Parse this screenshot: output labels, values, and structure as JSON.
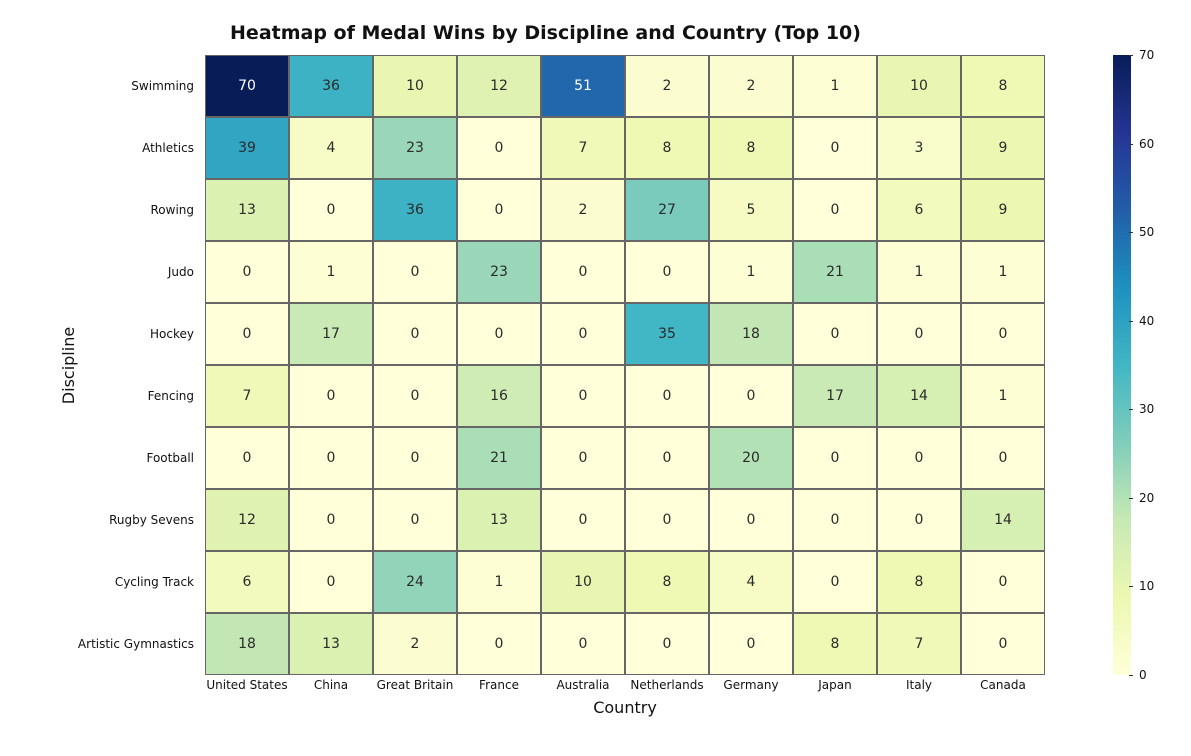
{
  "chart": {
    "type": "heatmap",
    "title": "Heatmap of Medal Wins by Discipline and Country (Top 10)",
    "title_fontsize": 19,
    "title_fontweight": "700",
    "xlabel": "Country",
    "ylabel": "Discipline",
    "axis_label_fontsize": 16,
    "tick_fontsize": 12,
    "annot_fontsize": 14,
    "rows": [
      "Swimming",
      "Athletics",
      "Rowing",
      "Judo",
      "Hockey",
      "Fencing",
      "Football",
      "Rugby Sevens",
      "Cycling Track",
      "Artistic Gymnastics"
    ],
    "columns": [
      "United States",
      "China",
      "Great Britain",
      "France",
      "Australia",
      "Netherlands",
      "Germany",
      "Japan",
      "Italy",
      "Canada"
    ],
    "values": [
      [
        70,
        36,
        10,
        12,
        51,
        2,
        2,
        1,
        10,
        8
      ],
      [
        39,
        4,
        23,
        0,
        7,
        8,
        8,
        0,
        3,
        9
      ],
      [
        13,
        0,
        36,
        0,
        2,
        27,
        5,
        0,
        6,
        9
      ],
      [
        0,
        1,
        0,
        23,
        0,
        0,
        1,
        21,
        1,
        1
      ],
      [
        0,
        17,
        0,
        0,
        0,
        35,
        18,
        0,
        0,
        0
      ],
      [
        7,
        0,
        0,
        16,
        0,
        0,
        0,
        17,
        14,
        1
      ],
      [
        0,
        0,
        0,
        21,
        0,
        0,
        20,
        0,
        0,
        0
      ],
      [
        12,
        0,
        0,
        13,
        0,
        0,
        0,
        0,
        0,
        14
      ],
      [
        6,
        0,
        24,
        1,
        10,
        8,
        4,
        0,
        8,
        0
      ],
      [
        18,
        13,
        2,
        0,
        0,
        0,
        0,
        8,
        7,
        0
      ]
    ],
    "vmin": 0,
    "vmax": 70,
    "grid_line_color": "#666666",
    "light_text_color": "#ffffff",
    "dark_text_color": "#2b2b2b",
    "text_threshold": 45,
    "cmap_stops": [
      {
        "t": 0.0,
        "c": "#ffffd9"
      },
      {
        "t": 0.125,
        "c": "#edf8b1"
      },
      {
        "t": 0.25,
        "c": "#c7e9b4"
      },
      {
        "t": 0.375,
        "c": "#7fcdbb"
      },
      {
        "t": 0.5,
        "c": "#41b6c4"
      },
      {
        "t": 0.625,
        "c": "#1d91c0"
      },
      {
        "t": 0.75,
        "c": "#225ea8"
      },
      {
        "t": 0.875,
        "c": "#253494"
      },
      {
        "t": 1.0,
        "c": "#081d58"
      }
    ],
    "colorbar_ticks": [
      0,
      10,
      20,
      30,
      40,
      50,
      60,
      70
    ]
  }
}
